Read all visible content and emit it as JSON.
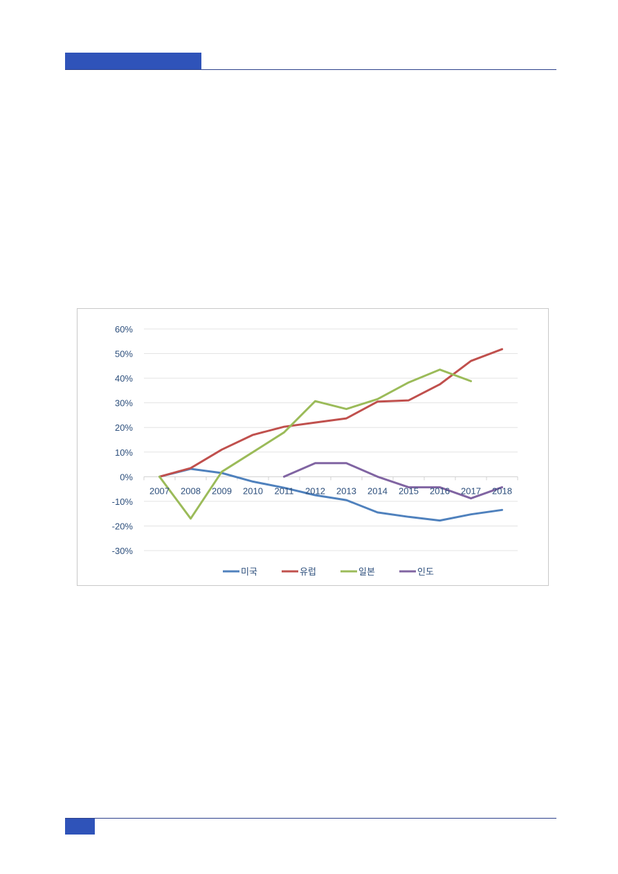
{
  "colors": {
    "accent": "#2f53b9",
    "rule": "#2b3f8a",
    "grid": "#e3e3e3",
    "axis": "#d0d0d0",
    "text": "#2d4f7c"
  },
  "chart_data": {
    "type": "line",
    "title": "",
    "xlabel": "",
    "ylabel": "",
    "x": [
      "2007",
      "2008",
      "2009",
      "2010",
      "2011",
      "2012",
      "2013",
      "2014",
      "2015",
      "2016",
      "2017",
      "2018"
    ],
    "ylim": [
      -30,
      60
    ],
    "yticks": [
      60,
      50,
      40,
      30,
      20,
      10,
      0,
      -10,
      -20,
      -30
    ],
    "ytick_labels": [
      "60%",
      "50%",
      "40%",
      "30%",
      "20%",
      "10%",
      "0%",
      "-10%",
      "-20%",
      "-30%"
    ],
    "grid": true,
    "legend_position": "bottom",
    "series": [
      {
        "name": "미국",
        "color": "#4f81bd",
        "values": [
          0,
          3.2,
          1.5,
          -2,
          -4.5,
          -7.5,
          -9.5,
          -14.5,
          -16.3,
          -17.8,
          -15.3,
          -13.5
        ]
      },
      {
        "name": "유럽",
        "color": "#c0504d",
        "values": [
          0,
          3.5,
          11,
          17,
          20.3,
          22,
          23.7,
          30.5,
          31,
          37.5,
          47,
          51.8
        ]
      },
      {
        "name": "일본",
        "color": "#9bbb59",
        "values": [
          0,
          -17,
          2,
          10,
          18,
          30.7,
          27.5,
          31.5,
          38.3,
          43.5,
          38.8,
          null
        ]
      },
      {
        "name": "인도",
        "color": "#8064a2",
        "values": [
          null,
          null,
          null,
          null,
          0,
          5.5,
          5.5,
          0,
          -4.3,
          -4.3,
          -8.8,
          -4.3
        ]
      }
    ]
  }
}
